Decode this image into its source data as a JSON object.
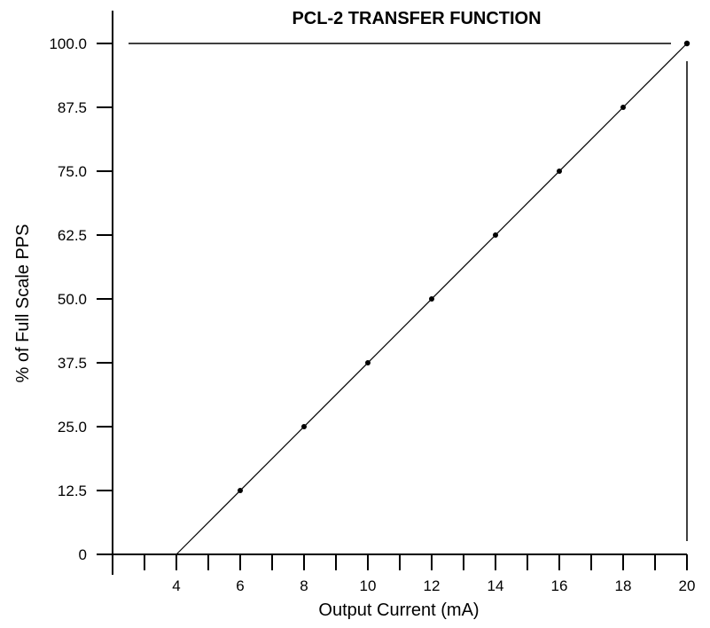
{
  "chart_data": {
    "type": "line",
    "title": "PCL-2 TRANSFER FUNCTION",
    "xlabel": "Output Current (mA)",
    "ylabel": "% of Full Scale PPS",
    "xlim": [
      2,
      20
    ],
    "ylim": [
      0,
      100
    ],
    "x_ticks": [
      2,
      3,
      4,
      5,
      6,
      7,
      8,
      9,
      10,
      11,
      12,
      13,
      14,
      15,
      16,
      17,
      18,
      19,
      20
    ],
    "x_tick_labels": [
      {
        "value": 4,
        "label": "4"
      },
      {
        "value": 6,
        "label": "6"
      },
      {
        "value": 8,
        "label": "8"
      },
      {
        "value": 10,
        "label": "10"
      },
      {
        "value": 12,
        "label": "12"
      },
      {
        "value": 14,
        "label": "14"
      },
      {
        "value": 16,
        "label": "16"
      },
      {
        "value": 18,
        "label": "18"
      },
      {
        "value": 20,
        "label": "20"
      }
    ],
    "y_ticks": [
      {
        "value": 0,
        "label": "0"
      },
      {
        "value": 12.5,
        "label": "12.5"
      },
      {
        "value": 25,
        "label": "25.0"
      },
      {
        "value": 37.5,
        "label": "37.5"
      },
      {
        "value": 50,
        "label": "50.0"
      },
      {
        "value": 62.5,
        "label": "62.5"
      },
      {
        "value": 75,
        "label": "75.0"
      },
      {
        "value": 87.5,
        "label": "87.5"
      },
      {
        "value": 100,
        "label": "100.0"
      }
    ],
    "series": [
      {
        "x": [
          4,
          20
        ],
        "y": [
          0,
          100
        ],
        "points": [
          {
            "x": 6,
            "y": 12.5
          },
          {
            "x": 8,
            "y": 25
          },
          {
            "x": 10,
            "y": 37.5
          },
          {
            "x": 12,
            "y": 50
          },
          {
            "x": 14,
            "y": 62.5
          },
          {
            "x": 16,
            "y": 75
          },
          {
            "x": 18,
            "y": 87.5
          }
        ],
        "endpoint": {
          "x": 20,
          "y": 100
        }
      }
    ],
    "reference_lines": [
      {
        "orientation": "horizontal",
        "y": 100
      },
      {
        "orientation": "vertical",
        "x": 20
      }
    ],
    "grid": false
  }
}
